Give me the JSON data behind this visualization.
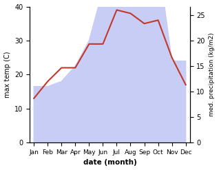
{
  "months": [
    "Jan",
    "Feb",
    "Mar",
    "Apr",
    "May",
    "Jun",
    "Jul",
    "Aug",
    "Sep",
    "Oct",
    "Nov",
    "Dec"
  ],
  "temp": [
    13,
    18,
    22,
    22,
    29,
    29,
    39,
    38,
    35,
    36,
    25,
    17
  ],
  "precip": [
    11,
    11,
    12,
    15,
    20,
    30,
    38,
    35,
    35,
    36,
    16,
    16
  ],
  "temp_color": "#c0392b",
  "precip_color_fill": "#c8cdf5",
  "left_ylabel": "max temp (C)",
  "right_ylabel": "med. precipitation (kg/m2)",
  "xlabel": "date (month)",
  "temp_ylim": [
    0,
    40
  ],
  "precip_ylim": [
    0,
    26.67
  ],
  "temp_yticks": [
    0,
    10,
    20,
    30,
    40
  ],
  "precip_yticks": [
    0,
    5,
    10,
    15,
    20,
    25
  ],
  "bg_color": "#ffffff"
}
